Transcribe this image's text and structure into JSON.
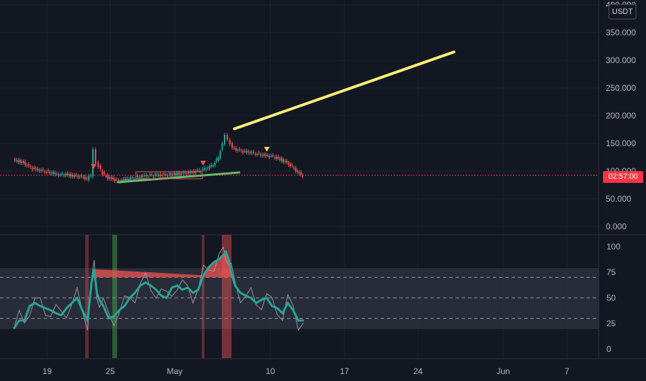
{
  "currency": "USDT",
  "current_price_label": "02:57:00",
  "price_axis": {
    "ticks": [
      "0.000",
      "50.000",
      "100.000",
      "150.000",
      "200.000",
      "250.000",
      "300.000",
      "350.000",
      "400.000"
    ],
    "values": [
      0,
      50,
      100,
      150,
      200,
      250,
      300,
      350,
      400
    ],
    "range": [
      -10,
      410
    ]
  },
  "oscillator_axis": {
    "ticks": [
      "0",
      "25",
      "50",
      "75",
      "100"
    ],
    "values": [
      0,
      25,
      50,
      75,
      100
    ],
    "band": [
      20,
      80
    ],
    "dashed_levels": [
      30,
      50,
      70
    ]
  },
  "time_axis": {
    "labels": [
      "19",
      "25",
      "May",
      "10",
      "17",
      "24",
      "Jun",
      "7"
    ]
  },
  "colors": {
    "up": "#26a69a",
    "down": "#ef5350",
    "trendline": "#fff176",
    "support": "#66bb6a",
    "price_line": "#f23645",
    "oscillator": "#26a69a",
    "oscillator_secondary": "#9598a1"
  },
  "chart_data": {
    "type": "line",
    "series": [
      {
        "x": [
          0,
          8,
          16,
          24,
          32,
          40,
          48,
          56,
          64,
          72,
          80,
          88,
          96,
          104,
          112,
          118,
          122,
          126,
          130,
          136,
          144,
          152,
          160,
          168,
          176,
          184,
          192,
          200,
          208,
          216,
          224,
          232,
          240,
          248,
          256,
          264,
          272,
          280,
          288,
          296,
          304,
          312,
          318,
          322,
          326,
          330,
          336,
          344,
          352,
          360,
          368,
          376,
          384,
          392,
          400,
          408,
          416,
          424,
          432,
          440
        ],
        "values": [
          120,
          118,
          115,
          108,
          104,
          102,
          100,
          98,
          95,
          93,
          94,
          92,
          91,
          90,
          86,
          92,
          140,
          115,
          108,
          96,
          88,
          86,
          82,
          84,
          86,
          88,
          90,
          91,
          92,
          92,
          93,
          94,
          94,
          95,
          96,
          97,
          98,
          100,
          102,
          106,
          112,
          125,
          150,
          165,
          155,
          148,
          140,
          137,
          135,
          134,
          132,
          130,
          128,
          127,
          124,
          120,
          115,
          108,
          98,
          92
        ]
      },
      {
        "x": [
          0,
          8,
          16,
          24,
          32,
          40,
          48,
          56,
          64,
          72,
          80,
          88,
          96,
          104,
          112,
          118,
          122,
          126,
          130,
          136,
          144,
          152,
          160,
          168,
          176,
          184,
          192,
          200,
          208,
          216,
          224,
          232,
          240,
          248,
          256,
          264,
          272,
          280,
          288,
          296,
          304,
          312,
          318,
          322,
          326,
          330,
          336,
          344,
          352,
          360,
          368,
          376,
          384,
          392,
          400,
          408,
          416,
          424,
          432,
          440
        ],
        "values": [
          20,
          28,
          28,
          42,
          45,
          42,
          40,
          38,
          35,
          33,
          40,
          45,
          50,
          38,
          28,
          65,
          78,
          55,
          48,
          42,
          30,
          32,
          38,
          42,
          50,
          55,
          62,
          65,
          62,
          58,
          52,
          50,
          60,
          62,
          58,
          60,
          55,
          58,
          72,
          80,
          85,
          88,
          92,
          95,
          88,
          75,
          62,
          55,
          52,
          50,
          45,
          48,
          50,
          42,
          40,
          35,
          45,
          38,
          28,
          28
        ]
      }
    ]
  }
}
